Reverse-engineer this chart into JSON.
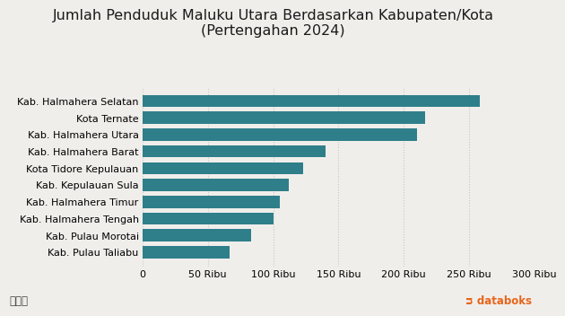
{
  "title_line1": "Jumlah Penduduk Maluku Utara Berdasarkan Kabupaten/Kota",
  "title_line2": "(Pertengahan 2024)",
  "categories": [
    "Kab. Pulau Taliabu",
    "Kab. Pulau Morotai",
    "Kab. Halmahera Tengah",
    "Kab. Halmahera Timur",
    "Kab. Kepulauan Sula",
    "Kota Tidore Kepulauan",
    "Kab. Halmahera Barat",
    "Kab. Halmahera Utara",
    "Kota Ternate",
    "Kab. Halmahera Selatan"
  ],
  "values": [
    67000,
    83000,
    100000,
    105000,
    112000,
    123000,
    140000,
    210000,
    216000,
    258000
  ],
  "bar_color": "#2e7f8a",
  "background_color": "#f0eeeb",
  "xlim": [
    0,
    300000
  ],
  "xticks": [
    0,
    50000,
    100000,
    150000,
    200000,
    250000,
    300000
  ],
  "xtick_labels": [
    "0",
    "50 Ribu",
    "100 Ribu",
    "150 Ribu",
    "200 Ribu",
    "250 Ribu",
    "300 Ribu"
  ],
  "title_fontsize": 11.5,
  "label_fontsize": 8.0,
  "tick_fontsize": 8.0,
  "grid_color": "#c8c8c8",
  "databoks_color": "#e8651a",
  "databoks_text": "databoks"
}
